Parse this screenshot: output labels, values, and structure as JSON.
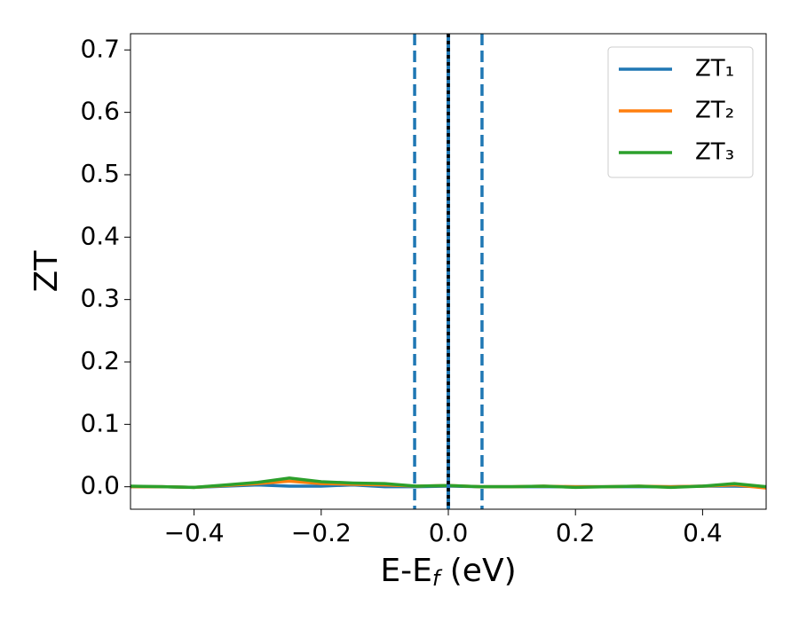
{
  "chart_data": {
    "type": "line",
    "xlabel": [
      "E-E",
      "f",
      " (eV)"
    ],
    "ylabel": "ZT",
    "x": [
      -0.5,
      -0.45,
      -0.4,
      -0.35,
      -0.3,
      -0.25,
      -0.2,
      -0.15,
      -0.1,
      -0.05,
      0.0,
      0.05,
      0.1,
      0.15,
      0.2,
      0.25,
      0.3,
      0.35,
      0.4,
      0.45,
      0.5
    ],
    "series": [
      {
        "name": "ZT₁",
        "color": "#1f77b4",
        "values": [
          0.0,
          0.0,
          -0.001,
          0.001,
          0.003,
          0.001,
          0.001,
          0.003,
          0.0,
          0.0,
          0.001,
          0.0,
          0.0,
          0.0,
          0.0,
          0.0,
          0.0,
          0.0,
          0.001,
          0.001,
          0.0
        ]
      },
      {
        "name": "ZT₂",
        "color": "#ff7f0e",
        "values": [
          0.0,
          0.0,
          -0.001,
          0.002,
          0.005,
          0.009,
          0.005,
          0.004,
          0.003,
          0.001,
          0.002,
          0.0,
          0.0,
          0.001,
          0.0,
          0.0,
          0.001,
          0.0,
          0.001,
          0.003,
          -0.002
        ]
      },
      {
        "name": "ZT₃",
        "color": "#2ca02c",
        "values": [
          0.001,
          0.0,
          -0.001,
          0.003,
          0.007,
          0.014,
          0.008,
          0.006,
          0.005,
          0.001,
          0.002,
          0.0,
          0.0,
          0.001,
          -0.001,
          0.0,
          0.001,
          -0.001,
          0.001,
          0.005,
          0.0
        ]
      }
    ],
    "vlines": [
      {
        "x": -0.053,
        "color": "#1f77b4",
        "style": "dashed"
      },
      {
        "x": 0.0,
        "color": "#1f77b4",
        "style": "solid"
      },
      {
        "x": 0.0,
        "color": "#000000",
        "style": "dotted"
      },
      {
        "x": 0.053,
        "color": "#1f77b4",
        "style": "dashed"
      }
    ],
    "xlim": [
      -0.5,
      0.5
    ],
    "ylim": [
      -0.036,
      0.726
    ],
    "xticks": [
      {
        "value": -0.4,
        "label": "−0.4"
      },
      {
        "value": -0.2,
        "label": "−0.2"
      },
      {
        "value": 0.0,
        "label": "0.0"
      },
      {
        "value": 0.2,
        "label": "0.2"
      },
      {
        "value": 0.4,
        "label": "0.4"
      }
    ],
    "yticks": [
      {
        "value": 0.0,
        "label": "0.0"
      },
      0.1,
      0.2,
      0.3,
      0.4,
      0.5,
      0.6,
      0.7
    ],
    "grid": false,
    "legend": "upper right"
  }
}
